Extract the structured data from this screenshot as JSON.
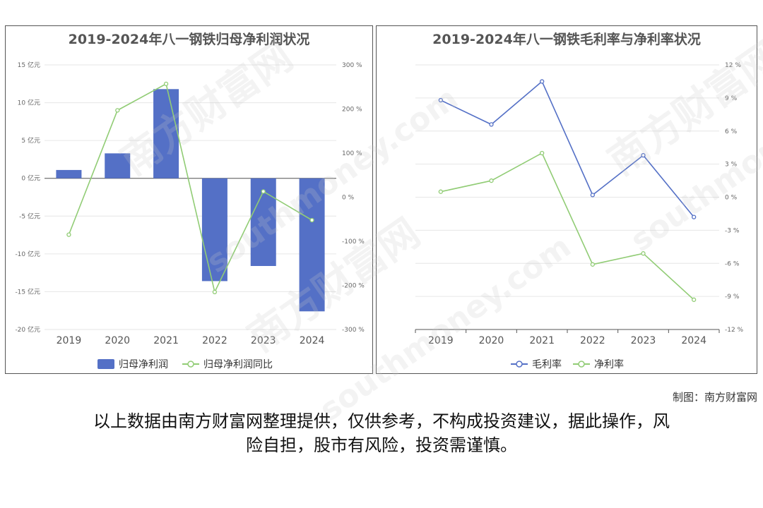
{
  "charts": {
    "left": {
      "title": "2019-2024年八一钢铁归母净利润状况",
      "legend": [
        "归母净利润",
        "归母净利润同比"
      ]
    },
    "right": {
      "title": "2019-2024年八一钢铁毛利率与净利率状况",
      "legend": [
        "毛利率",
        "净利率"
      ]
    }
  },
  "chart_data": [
    {
      "type": "bar",
      "title": "2019-2024年八一钢铁归母净利润状况",
      "categories": [
        "2019",
        "2020",
        "2021",
        "2022",
        "2023",
        "2024"
      ],
      "series": [
        {
          "name": "归母净利润",
          "type": "bar",
          "axis": "left",
          "values": [
            1.1,
            3.3,
            11.8,
            -13.6,
            -11.6,
            -17.6
          ],
          "color": "#5470c6"
        },
        {
          "name": "归母净利润同比",
          "type": "line",
          "axis": "right",
          "values": [
            -85,
            197,
            257,
            -215,
            13,
            -52
          ],
          "color": "#91cc75"
        }
      ],
      "ylim_left": [
        -20,
        15
      ],
      "yticks_left": [
        "15 亿元",
        "10 亿元",
        "5 亿元",
        "0 亿元",
        "-5 亿元",
        "-10 亿元",
        "-15 亿元",
        "-20 亿元"
      ],
      "ylim_right": [
        -300,
        300
      ],
      "yticks_right": [
        "300 %",
        "200 %",
        "100 %",
        "0 %",
        "-100 %",
        "-200 %",
        "-300 %"
      ],
      "grid": true,
      "legend_position": "bottom"
    },
    {
      "type": "line",
      "title": "2019-2024年八一钢铁毛利率与净利率状况",
      "categories": [
        "2019",
        "2020",
        "2021",
        "2022",
        "2023",
        "2024"
      ],
      "series": [
        {
          "name": "毛利率",
          "values": [
            8.8,
            6.6,
            10.5,
            0.2,
            3.8,
            -1.8
          ],
          "color": "#5470c6"
        },
        {
          "name": "净利率",
          "values": [
            0.5,
            1.5,
            4.0,
            -6.1,
            -5.1,
            -9.3
          ],
          "color": "#91cc75"
        }
      ],
      "ylim": [
        -12,
        12
      ],
      "yticks": [
        "12 %",
        "9 %",
        "6 %",
        "3 %",
        "0 %",
        "-3 %",
        "-6 %",
        "-9 %",
        "-12 %"
      ],
      "grid": true,
      "legend_position": "bottom"
    }
  ],
  "footer": {
    "credit": "制图：南方财富网",
    "disclaimer_line1": "以上数据由南方财富网整理提供，仅供参考，不构成投资建议，据此操作，风",
    "disclaimer_line2": "险自担，股市有风险，投资需谨慎。"
  },
  "watermark": {
    "cn": "南方财富网",
    "en": "southmoney.com"
  }
}
